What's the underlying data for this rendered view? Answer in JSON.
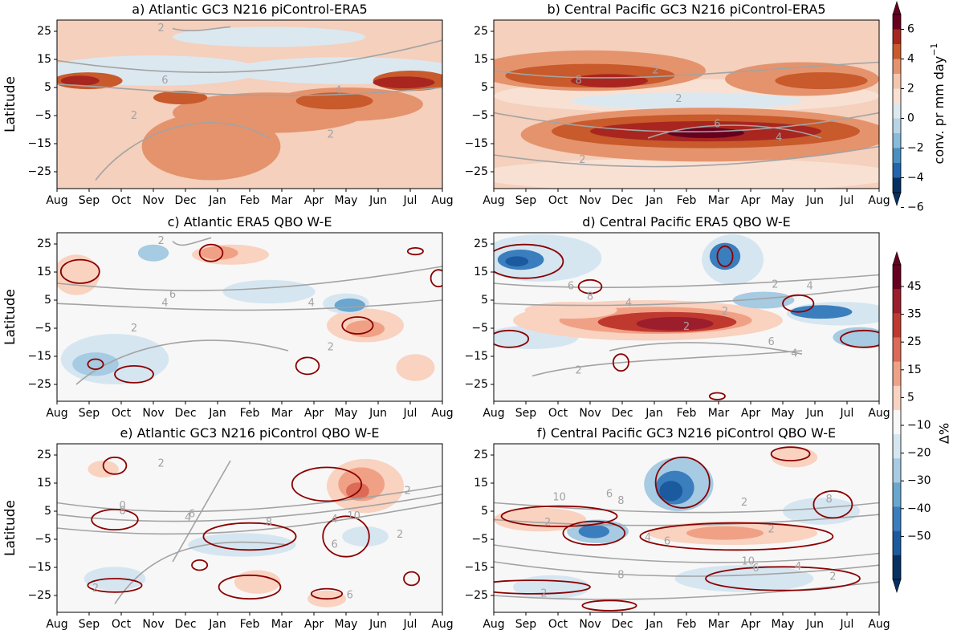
{
  "months": [
    "Aug",
    "Sep",
    "Oct",
    "Nov",
    "Dec",
    "Jan",
    "Feb",
    "Mar",
    "Apr",
    "May",
    "Jun",
    "Jul",
    "Aug"
  ],
  "ylabel": "Latitude",
  "yticks": [
    "25",
    "15",
    "5",
    "−5",
    "−15",
    "−25"
  ],
  "top_colorbar": {
    "label": "conv. pr mm day",
    "exponent": "−1",
    "ticks": [
      "6",
      "4",
      "2",
      "0",
      "−2",
      "−4",
      "−6"
    ],
    "colors": [
      "#67001f",
      "#a8261f",
      "#c85a2b",
      "#e5936d",
      "#f4c6ab",
      "#f8e1d3",
      "#dce8f0",
      "#b8d4e7",
      "#87bcda",
      "#4a8fc1",
      "#2166ac",
      "#053061"
    ]
  },
  "bottom_colorbar": {
    "label": "Δ%",
    "ticks": [
      "45",
      "35",
      "25",
      "15",
      "5",
      "−10",
      "−20",
      "−30",
      "−40",
      "−50"
    ],
    "colors": [
      "#67001f",
      "#9c1d2c",
      "#c0392f",
      "#dc6a56",
      "#f0a185",
      "#f9d2c0",
      "#f7f7f7",
      "#d5e6f1",
      "#a6cbe2",
      "#6aa6cf",
      "#3a7ebd",
      "#1b5a9e",
      "#053061"
    ]
  },
  "chart_data": [
    {
      "type": "heatmap",
      "title": "a) Atlantic GC3 N216 piControl-ERA5",
      "variable": "conv. pr difference (mm day−1)",
      "xlabel": "",
      "ylabel": "Latitude",
      "ylim": [
        -30,
        30
      ],
      "contour_labels": [
        "2",
        "4",
        "6",
        "2",
        "2"
      ]
    },
    {
      "type": "heatmap",
      "title": "b) Central Pacific GC3 N216 piControl-ERA5",
      "variable": "conv. pr difference (mm day−1)",
      "xlabel": "",
      "ylabel": "",
      "ylim": [
        -30,
        30
      ],
      "contour_labels": [
        "2",
        "8",
        "6",
        "4",
        "2",
        "2"
      ]
    },
    {
      "type": "heatmap",
      "title": "c) Atlantic ERA5 QBO W-E",
      "variable": "Δ%",
      "xlabel": "",
      "ylabel": "Latitude",
      "ylim": [
        -30,
        30
      ],
      "contour_labels": [
        "2",
        "6",
        "4",
        "4",
        "2",
        "2"
      ]
    },
    {
      "type": "heatmap",
      "title": "d) Central Pacific ERA5 QBO W-E",
      "variable": "Δ%",
      "xlabel": "",
      "ylabel": "",
      "ylim": [
        -30,
        30
      ],
      "contour_labels": [
        "6",
        "8",
        "4",
        "2",
        "2",
        "6",
        "4",
        "2",
        "4",
        "2"
      ]
    },
    {
      "type": "heatmap",
      "title": "e) Atlantic GC3 N216 piControl QBO W-E",
      "variable": "Δ%",
      "xlabel": "",
      "ylabel": "Latitude",
      "ylim": [
        -30,
        30
      ],
      "contour_labels": [
        "2",
        "0",
        "8",
        "6",
        "4",
        "8",
        "2",
        "4",
        "6",
        "10",
        "2",
        "6",
        "2"
      ]
    },
    {
      "type": "heatmap",
      "title": "f) Central Pacific GC3 N216 piControl QBO W-E",
      "variable": "Δ%",
      "xlabel": "",
      "ylabel": "",
      "ylim": [
        -30,
        30
      ],
      "contour_labels": [
        "10",
        "6",
        "8",
        "2",
        "2",
        "8",
        "2",
        "4",
        "6",
        "10",
        "6",
        "4",
        "8",
        "2",
        "2"
      ]
    }
  ]
}
